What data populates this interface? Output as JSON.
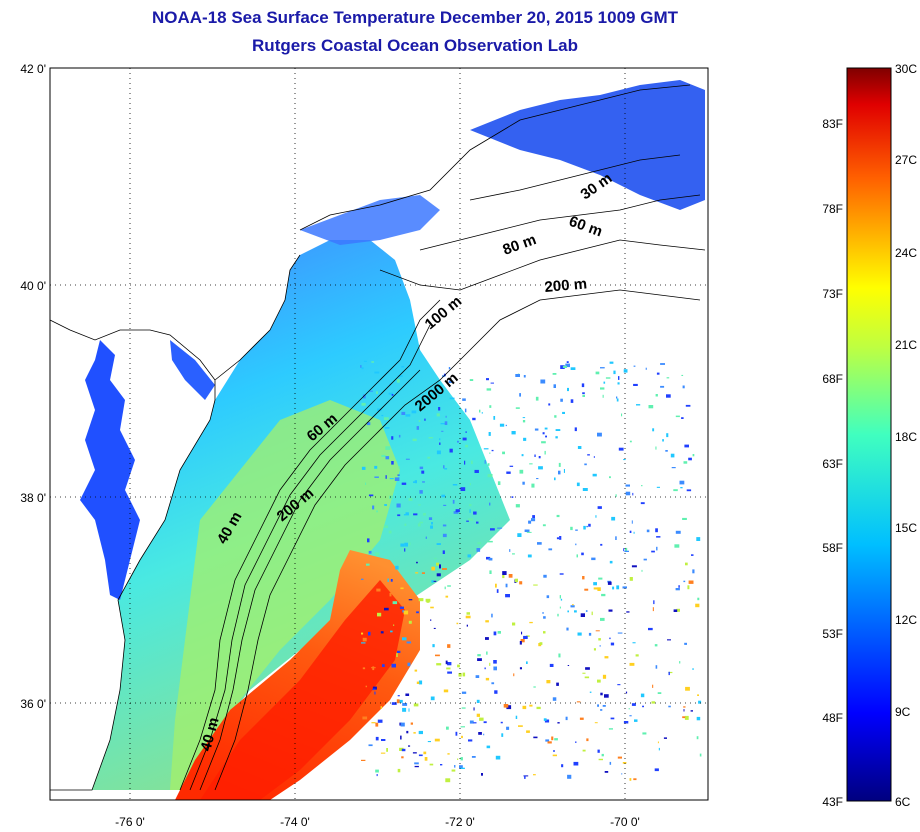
{
  "header": {
    "title_line1": "NOAA-18 Sea Surface Temperature December 20, 2015 1009 GMT",
    "title_line2": "Rutgers Coastal Ocean Observation Lab"
  },
  "map": {
    "lat_labels": [
      "42 0'",
      "40 0'",
      "38 0'",
      "36 0'"
    ],
    "lon_labels": [
      "-76 0'",
      "-74 0'",
      "-72 0'",
      "-70 0'"
    ],
    "contour_labels": [
      "30 m",
      "60 m",
      "80 m",
      "200 m",
      "100 m",
      "2000 m",
      "60 m",
      "200 m",
      "40 m",
      "40 m"
    ]
  },
  "colorbar": {
    "celsius_labels": [
      "30C",
      "27C",
      "24C",
      "21C",
      "18C",
      "15C",
      "12C",
      "9C",
      "6C"
    ],
    "fahrenheit_labels": [
      "83F",
      "78F",
      "73F",
      "68F",
      "63F",
      "58F",
      "53F",
      "48F",
      "43F"
    ],
    "colors": [
      "#7f0000",
      "#ff0000",
      "#ff7f00",
      "#ffff00",
      "#7fff7f",
      "#00ffff",
      "#007fff",
      "#0000ff",
      "#00007f"
    ]
  }
}
